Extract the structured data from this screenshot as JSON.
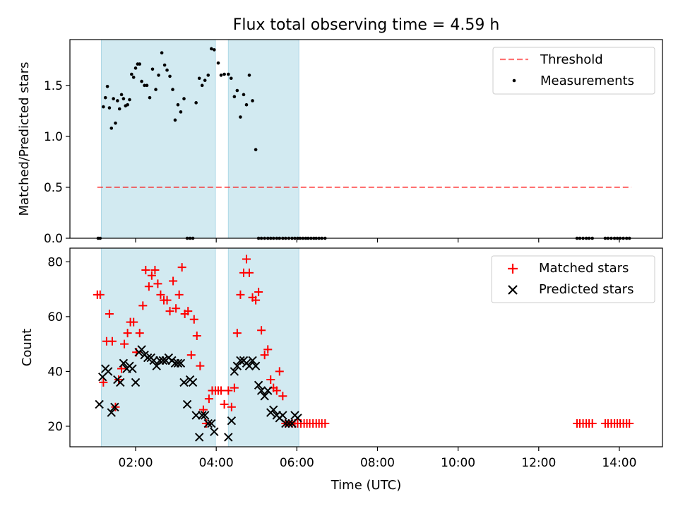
{
  "title": "Flux total observing time = 4.59 h",
  "xlabel": "Time (UTC)",
  "colors": {
    "band": "#add8e6",
    "threshold": "#ff0000",
    "measurement": "#000000",
    "matched": "#ff0000",
    "predicted": "#000000"
  },
  "chart_data": [
    {
      "type": "scatter",
      "panel": "top",
      "ylabel": "Matched/Predicted stars",
      "ylim": [
        0,
        1.95
      ],
      "yticks": [
        "0.0",
        "0.5",
        "1.0",
        "1.5"
      ],
      "ytick_values": [
        0,
        0.5,
        1.0,
        1.5
      ],
      "xlim_hours": [
        0.37,
        15.07
      ],
      "xticks": [
        "02:00",
        "04:00",
        "06:00",
        "08:00",
        "10:00",
        "12:00",
        "14:00"
      ],
      "xtick_values_hours": [
        2,
        4,
        6,
        8,
        10,
        12,
        14
      ],
      "observing_windows_hours": [
        [
          1.15,
          3.98
        ],
        [
          4.3,
          6.05
        ]
      ],
      "legend": {
        "placement": "upper right",
        "entries": [
          "Threshold",
          "Measurements"
        ]
      },
      "threshold": {
        "name": "Threshold",
        "value": 0.5,
        "x_range_hours": [
          1.05,
          14.3
        ]
      },
      "series": [
        {
          "name": "Measurements",
          "x_hours": [
            1.07,
            1.12,
            1.2,
            1.25,
            1.3,
            1.35,
            1.4,
            1.45,
            1.5,
            1.55,
            1.6,
            1.65,
            1.7,
            1.75,
            1.8,
            1.85,
            1.9,
            1.95,
            2.0,
            2.05,
            2.1,
            2.15,
            2.22,
            2.28,
            2.35,
            2.42,
            2.5,
            2.57,
            2.65,
            2.72,
            2.78,
            2.85,
            2.92,
            2.98,
            3.05,
            3.12,
            3.2,
            3.28,
            3.35,
            3.42,
            3.5,
            3.58,
            3.65,
            3.72,
            3.8,
            3.88,
            3.95,
            4.05,
            4.12,
            4.2,
            4.3,
            4.37,
            4.45,
            4.52,
            4.6,
            4.68,
            4.75,
            4.82,
            4.9,
            4.98,
            5.05,
            5.12,
            5.2,
            5.28,
            5.35,
            5.42,
            5.5,
            5.57,
            5.65,
            5.72,
            5.8,
            5.88,
            5.95,
            6.02,
            6.08,
            6.15,
            6.22,
            6.28,
            6.35,
            6.42,
            6.48,
            6.55,
            6.62,
            6.7,
            12.95,
            13.02,
            13.1,
            13.18,
            13.25,
            13.33,
            13.65,
            13.72,
            13.8,
            13.88,
            13.95,
            14.02,
            14.1,
            14.18,
            14.25
          ],
          "y": [
            0,
            0,
            1.29,
            1.38,
            1.49,
            1.28,
            1.08,
            1.37,
            1.13,
            1.35,
            1.27,
            1.41,
            1.37,
            1.3,
            1.31,
            1.36,
            1.61,
            1.58,
            1.67,
            1.71,
            1.71,
            1.54,
            1.5,
            1.5,
            1.38,
            1.66,
            1.46,
            1.6,
            1.82,
            1.7,
            1.65,
            1.59,
            1.46,
            1.16,
            1.31,
            1.24,
            1.37,
            0,
            0,
            0,
            1.33,
            1.57,
            1.5,
            1.55,
            1.6,
            1.86,
            1.85,
            1.72,
            1.6,
            1.61,
            1.61,
            1.57,
            1.39,
            1.45,
            1.19,
            1.41,
            1.31,
            1.6,
            1.35,
            0.87,
            0,
            0,
            0,
            0,
            0,
            0,
            0,
            0,
            0,
            0,
            0,
            0,
            0,
            0,
            0,
            0,
            0,
            0,
            0,
            0,
            0,
            0,
            0,
            0,
            0,
            0,
            0,
            0,
            0,
            0,
            0,
            0,
            0,
            0,
            0,
            0,
            0,
            0,
            0
          ]
        }
      ]
    },
    {
      "type": "scatter",
      "panel": "bottom",
      "ylabel": "Count",
      "ylim": [
        12.5,
        85
      ],
      "yticks": [
        "20",
        "40",
        "60",
        "80"
      ],
      "ytick_values": [
        20,
        40,
        60,
        80
      ],
      "xlim_hours": [
        0.37,
        15.07
      ],
      "xticks": [
        "02:00",
        "04:00",
        "06:00",
        "08:00",
        "10:00",
        "12:00",
        "14:00"
      ],
      "xtick_values_hours": [
        2,
        4,
        6,
        8,
        10,
        12,
        14
      ],
      "observing_windows_hours": [
        [
          1.15,
          3.98
        ],
        [
          4.3,
          6.05
        ]
      ],
      "legend": {
        "placement": "upper right",
        "entries": [
          "Matched stars",
          "Predicted stars"
        ]
      },
      "series": [
        {
          "name": "Matched stars",
          "marker": "plus",
          "x_hours": [
            1.05,
            1.12,
            1.2,
            1.28,
            1.35,
            1.42,
            1.5,
            1.58,
            1.65,
            1.72,
            1.8,
            1.87,
            1.95,
            2.02,
            2.1,
            2.18,
            2.25,
            2.33,
            2.4,
            2.48,
            2.55,
            2.62,
            2.7,
            2.78,
            2.85,
            2.93,
            3.0,
            3.08,
            3.15,
            3.22,
            3.3,
            3.38,
            3.45,
            3.52,
            3.6,
            3.68,
            3.75,
            3.82,
            3.9,
            3.98,
            4.05,
            4.12,
            4.2,
            4.3,
            4.38,
            4.45,
            4.52,
            4.6,
            4.68,
            4.75,
            4.82,
            4.9,
            4.98,
            5.05,
            5.12,
            5.2,
            5.28,
            5.35,
            5.42,
            5.5,
            5.57,
            5.65,
            5.72,
            5.8,
            5.88,
            5.95,
            6.02,
            6.1,
            6.18,
            6.25,
            6.32,
            6.4,
            6.48,
            6.55,
            6.62,
            6.7,
            12.95,
            13.02,
            13.1,
            13.18,
            13.25,
            13.33,
            13.65,
            13.72,
            13.8,
            13.88,
            13.95,
            14.02,
            14.1,
            14.18,
            14.25
          ],
          "y": [
            68,
            68,
            36,
            51,
            61,
            51,
            27,
            37,
            41,
            50,
            54,
            58,
            58,
            47,
            54,
            64,
            77,
            71,
            75,
            77,
            72,
            68,
            66,
            66,
            62,
            73,
            63,
            68,
            78,
            61,
            62,
            46,
            59,
            53,
            42,
            26,
            21,
            30,
            33,
            33,
            33,
            33,
            28,
            33,
            27,
            34,
            54,
            68,
            76,
            81,
            76,
            67,
            66,
            69,
            55,
            46,
            48,
            37,
            34,
            33,
            40,
            31,
            21,
            21,
            21,
            21,
            21,
            21,
            21,
            21,
            21,
            21,
            21,
            21,
            21,
            21,
            21,
            21,
            21,
            21,
            21,
            21,
            21,
            21,
            21,
            21,
            21,
            21,
            21,
            21,
            21
          ]
        },
        {
          "name": "Predicted stars",
          "marker": "x",
          "x_hours": [
            1.1,
            1.18,
            1.25,
            1.32,
            1.4,
            1.48,
            1.55,
            1.62,
            1.7,
            1.78,
            1.85,
            1.92,
            2.0,
            2.08,
            2.15,
            2.22,
            2.3,
            2.38,
            2.45,
            2.52,
            2.6,
            2.68,
            2.75,
            2.82,
            2.9,
            2.98,
            3.05,
            3.12,
            3.2,
            3.28,
            3.35,
            3.42,
            3.5,
            3.58,
            3.65,
            3.72,
            3.8,
            3.88,
            3.95,
            4.3,
            4.38,
            4.45,
            4.52,
            4.6,
            4.68,
            4.75,
            4.82,
            4.9,
            4.98,
            5.05,
            5.12,
            5.2,
            5.28,
            5.35,
            5.42,
            5.5,
            5.57,
            5.65,
            5.72,
            5.8,
            5.88,
            5.95,
            6.02
          ],
          "y": [
            28,
            38,
            41,
            40,
            25,
            27,
            37,
            36,
            43,
            41,
            42,
            41,
            36,
            47,
            48,
            46,
            45,
            45,
            44,
            42,
            44,
            44,
            44,
            45,
            44,
            43,
            43,
            43,
            36,
            28,
            37,
            36,
            24,
            16,
            24,
            24,
            21,
            21,
            18,
            16,
            22,
            40,
            42,
            44,
            44,
            43,
            42,
            44,
            42,
            35,
            33,
            31,
            33,
            25,
            26,
            24,
            23,
            24,
            21,
            21,
            21,
            24,
            23
          ]
        }
      ]
    }
  ]
}
